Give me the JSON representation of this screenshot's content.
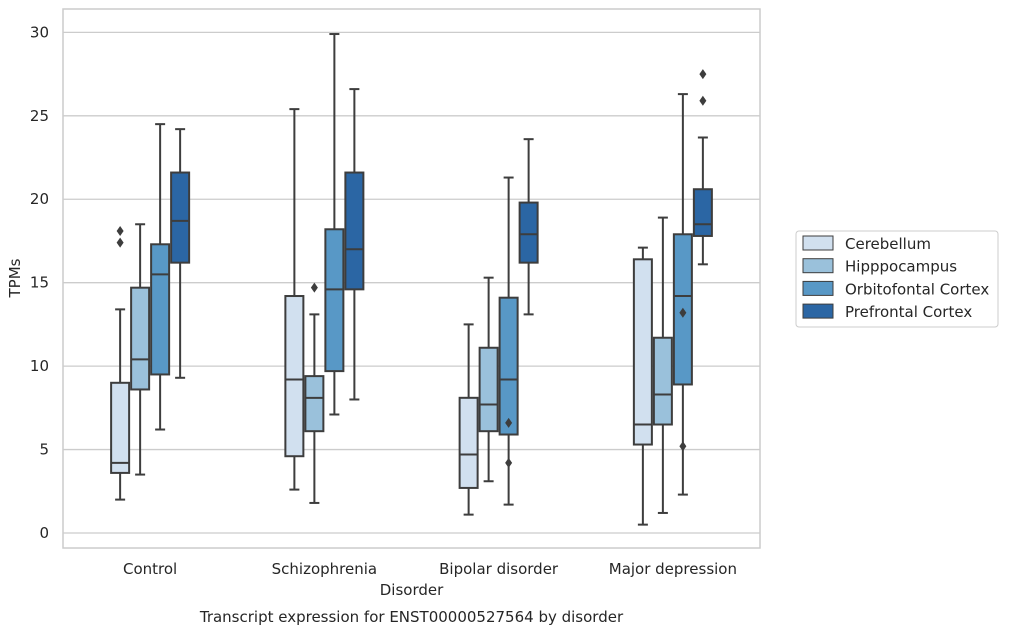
{
  "chart_data": {
    "type": "box",
    "title": "",
    "caption": "Transcript expression for ENST00000527564 by disorder",
    "xlabel": "Disorder",
    "ylabel": "TPMs",
    "ylim": [
      -0.9,
      31.4
    ],
    "yticks": [
      0,
      5,
      10,
      15,
      20,
      25,
      30
    ],
    "grid": "horizontal",
    "legend_position": "right",
    "categories": [
      "Control",
      "Schizophrenia",
      "Bipolar disorder",
      "Major depression"
    ],
    "series": [
      {
        "name": "Cerebellum",
        "color": "#d1e0ef",
        "boxes": [
          {
            "whisker_low": 2.0,
            "q1": 3.6,
            "median": 4.2,
            "q3": 9.0,
            "whisker_high": 13.4,
            "outliers": [
              17.4,
              18.1
            ]
          },
          {
            "whisker_low": 2.6,
            "q1": 4.6,
            "median": 9.2,
            "q3": 14.2,
            "whisker_high": 25.4,
            "outliers": []
          },
          {
            "whisker_low": 1.1,
            "q1": 2.7,
            "median": 4.7,
            "q3": 8.1,
            "whisker_high": 12.5,
            "outliers": []
          },
          {
            "whisker_low": 0.5,
            "q1": 5.3,
            "median": 6.5,
            "q3": 16.4,
            "whisker_high": 17.1,
            "outliers": []
          }
        ]
      },
      {
        "name": "Hipppocampus",
        "color": "#9ac1db",
        "boxes": [
          {
            "whisker_low": 3.5,
            "q1": 8.6,
            "median": 10.4,
            "q3": 14.7,
            "whisker_high": 18.5,
            "outliers": []
          },
          {
            "whisker_low": 1.8,
            "q1": 6.1,
            "median": 8.1,
            "q3": 9.4,
            "whisker_high": 13.1,
            "outliers": [
              14.7
            ]
          },
          {
            "whisker_low": 3.1,
            "q1": 6.1,
            "median": 7.7,
            "q3": 11.1,
            "whisker_high": 15.3,
            "outliers": []
          },
          {
            "whisker_low": 1.2,
            "q1": 6.5,
            "median": 8.3,
            "q3": 11.7,
            "whisker_high": 18.9,
            "outliers": []
          }
        ]
      },
      {
        "name": "Orbitofontal Cortex",
        "color": "#5898c6",
        "boxes": [
          {
            "whisker_low": 6.2,
            "q1": 9.5,
            "median": 15.5,
            "q3": 17.3,
            "whisker_high": 24.5,
            "outliers": []
          },
          {
            "whisker_low": 7.1,
            "q1": 9.7,
            "median": 14.6,
            "q3": 18.2,
            "whisker_high": 29.9,
            "outliers": []
          },
          {
            "whisker_low": 1.7,
            "q1": 5.9,
            "median": 9.2,
            "q3": 14.1,
            "whisker_high": 21.3,
            "outliers": [
              4.2,
              6.6
            ]
          },
          {
            "whisker_low": 2.3,
            "q1": 8.9,
            "median": 14.2,
            "q3": 17.9,
            "whisker_high": 26.3,
            "outliers": [
              5.2,
              13.2
            ]
          }
        ]
      },
      {
        "name": "Prefrontal Cortex",
        "color": "#2b66a4",
        "boxes": [
          {
            "whisker_low": 9.3,
            "q1": 16.2,
            "median": 18.7,
            "q3": 21.6,
            "whisker_high": 24.2,
            "outliers": []
          },
          {
            "whisker_low": 8.0,
            "q1": 14.6,
            "median": 17.0,
            "q3": 21.6,
            "whisker_high": 26.6,
            "outliers": []
          },
          {
            "whisker_low": 13.1,
            "q1": 16.2,
            "median": 17.9,
            "q3": 19.8,
            "whisker_high": 23.6,
            "outliers": []
          },
          {
            "whisker_low": 16.1,
            "q1": 17.8,
            "median": 18.5,
            "q3": 20.6,
            "whisker_high": 23.7,
            "outliers": [
              25.9,
              27.5
            ]
          }
        ]
      }
    ]
  }
}
